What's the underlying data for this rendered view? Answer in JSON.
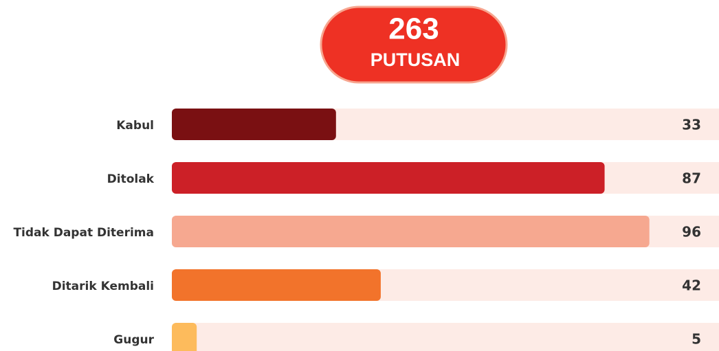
{
  "chart_data": {
    "type": "bar",
    "orientation": "horizontal",
    "total": 263,
    "total_label": "PUTUSAN",
    "categories": [
      "Kabul",
      "Ditolak",
      "Tidak Dapat Diterima",
      "Ditarik Kembali",
      "Gugur"
    ],
    "values": [
      33,
      87,
      96,
      42,
      5
    ],
    "colors": [
      "#7a1012",
      "#cc2027",
      "#f6a890",
      "#f2732b",
      "#fdbb5c"
    ],
    "track_color": "#fdebe6",
    "xlim": [
      0,
      110
    ]
  }
}
